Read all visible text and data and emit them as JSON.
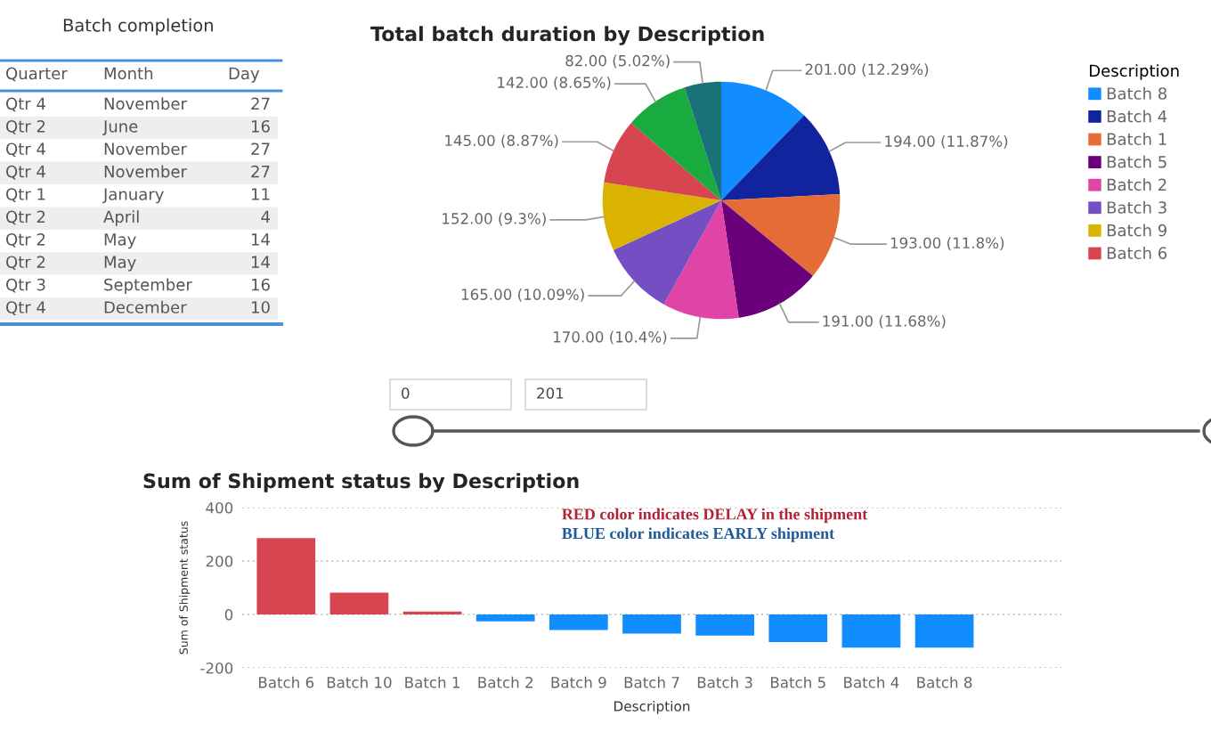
{
  "chart_data": [
    {
      "type": "other",
      "title": "Batch completion",
      "categories": [
        "Quarter",
        "Month",
        "Day"
      ],
      "cell_labels": [
        [
          "Qtr 4",
          "November",
          "27"
        ],
        [
          "Qtr 2",
          "June",
          "16"
        ],
        [
          "Qtr 4",
          "November",
          "27"
        ],
        [
          "Qtr 4",
          "November",
          "27"
        ],
        [
          "Qtr 1",
          "January",
          "11"
        ],
        [
          "Qtr 2",
          "April",
          "4"
        ],
        [
          "Qtr 2",
          "May",
          "14"
        ],
        [
          "Qtr 2",
          "May",
          "14"
        ],
        [
          "Qtr 3",
          "September",
          "16"
        ],
        [
          "Qtr 4",
          "December",
          "10"
        ]
      ]
    },
    {
      "type": "pie",
      "title": "Total batch duration by Description",
      "legend_title": "Description",
      "legend": "right",
      "categories": [
        "Batch 8",
        "Batch 4",
        "Batch 1",
        "Batch 5",
        "Batch 2",
        "Batch 3",
        "Batch 9",
        "Batch 6",
        null,
        null
      ],
      "values": [
        201,
        194,
        193,
        191,
        170,
        165,
        152,
        145,
        142,
        82
      ],
      "colors": [
        "#118dff",
        "#12239e",
        "#e66c37",
        "#6b007b",
        "#e044a7",
        "#744ec2",
        "#d9b300",
        "#d64550",
        "#1aab40",
        "#197278"
      ],
      "value_labels": [
        "201.00 (12.29%)",
        "194.00 (11.87%)",
        "193.00 (11.8%)",
        "191.00 (11.68%)",
        "170.00 (10.4%)",
        "165.00 (10.09%)",
        "152.00 (9.3%)",
        "145.00 (8.87%)",
        "142.00 (8.65%)",
        "82.00 (5.02%)"
      ]
    },
    {
      "type": "other",
      "annotations": [
        "0",
        "201"
      ]
    },
    {
      "type": "bar",
      "title": "Sum of Shipment status by Description",
      "xlabel": "Description",
      "ylabel": "Sum of Shipment status",
      "categories": [
        "Batch 6",
        "Batch 10",
        "Batch 1",
        "Batch 2",
        "Batch 9",
        "Batch 7",
        "Batch 3",
        "Batch 5",
        "Batch 4",
        "Batch 8"
      ],
      "values": [
        286,
        82,
        11,
        -26,
        -58,
        -72,
        -79,
        -103,
        -124,
        -124
      ],
      "colors": [
        "#d64550",
        "#d64550",
        "#d64550",
        "#118dff",
        "#118dff",
        "#118dff",
        "#118dff",
        "#118dff",
        "#118dff",
        "#118dff"
      ],
      "ylim": [
        -200,
        400
      ],
      "yticks": [
        -200,
        0,
        200,
        400
      ],
      "grid": "y",
      "annotations": [
        "RED color indicates DELAY in the shipment",
        "BLUE color indicates EARLY shipment"
      ]
    }
  ]
}
